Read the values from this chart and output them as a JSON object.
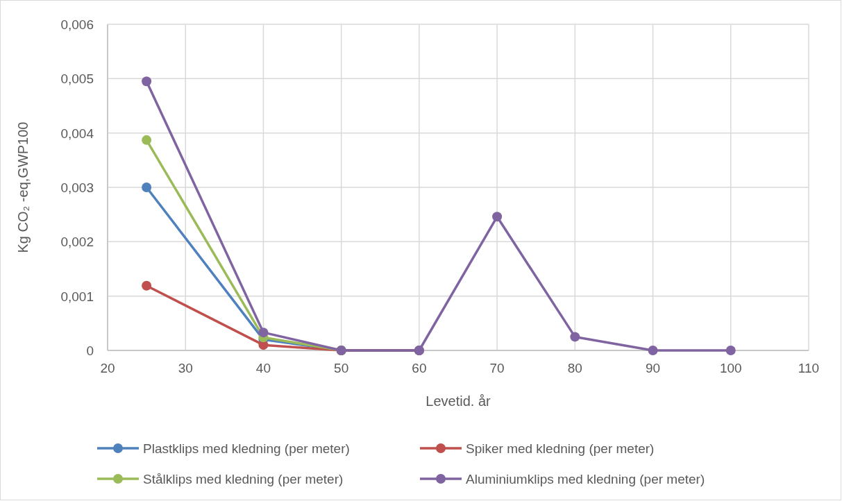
{
  "chart_data": {
    "type": "line",
    "xlabel": "Levetid. år",
    "ylabel": "Kg CO₂ -eq,GWP100",
    "x": [
      25,
      40,
      50,
      60,
      70,
      80,
      90,
      100
    ],
    "series": [
      {
        "name": "Plastklips med kledning (per meter)",
        "color": "#4f81bd",
        "values": [
          0.003,
          0.0002,
          0,
          0,
          null,
          null,
          null,
          null
        ]
      },
      {
        "name": "Spiker med kledning (per meter)",
        "color": "#c0504d",
        "values": [
          0.00119,
          0.0001,
          0,
          0,
          null,
          null,
          null,
          null
        ]
      },
      {
        "name": "Stålklips med kledning (per meter)",
        "color": "#9bbb59",
        "values": [
          0.00387,
          0.00024,
          0,
          null,
          null,
          null,
          null,
          null
        ]
      },
      {
        "name": "Aluminiumklips med kledning (per meter)",
        "color": "#8064a2",
        "values": [
          0.00495,
          0.00033,
          0,
          0,
          0.00246,
          0.00025,
          0,
          0
        ]
      }
    ],
    "xlim": [
      20,
      110
    ],
    "xticks": [
      20,
      30,
      40,
      50,
      60,
      70,
      80,
      90,
      100,
      110
    ],
    "ylim": [
      0,
      0.006
    ],
    "yticks": [
      0,
      {
        "value": 0.001,
        "label": "0,001"
      },
      {
        "value": 0.002,
        "label": "0,002"
      },
      {
        "value": 0.003,
        "label": "0,003"
      },
      {
        "value": 0.004,
        "label": "0,004"
      },
      {
        "value": 0.005,
        "label": "0,005"
      },
      {
        "value": 0.006,
        "label": "0,006"
      }
    ],
    "grid": true,
    "legend": "bottom",
    "marker": "circle",
    "line_style": "solid"
  }
}
